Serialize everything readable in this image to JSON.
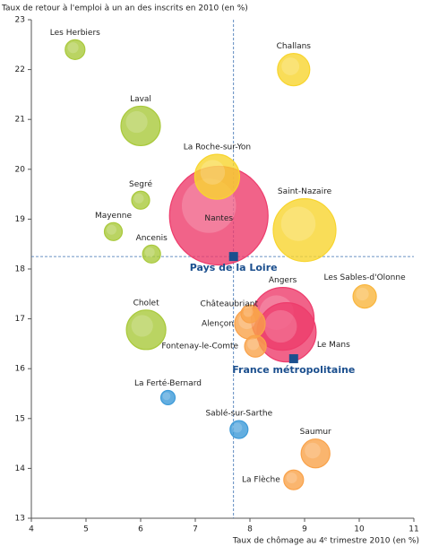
{
  "chart_data": {
    "type": "bubble",
    "y_label": "Taux de retour à l'emploi à un an des inscrits en 2010 (en %)",
    "x_label": "Taux de chômage au 4ᵉ trimestre 2010 (en %)",
    "xlim": [
      4,
      11
    ],
    "xticks": [
      4,
      5,
      6,
      7,
      8,
      9,
      10,
      11
    ],
    "ylim": [
      13,
      23
    ],
    "yticks": [
      13,
      14,
      15,
      16,
      17,
      18,
      19,
      20,
      21,
      22,
      23
    ],
    "points": [
      {
        "name": "Les Herbiers",
        "x": 4.8,
        "y": 22.4,
        "size": 4,
        "color": "#a9c93b"
      },
      {
        "name": "Challans",
        "x": 8.8,
        "y": 22.0,
        "size": 10.7,
        "color": "#f8d52e"
      },
      {
        "name": "Laval",
        "x": 6.0,
        "y": 20.87,
        "size": 16,
        "color": "#a9c93b"
      },
      {
        "name": "La Roche-sur-Yon",
        "x": 7.4,
        "y": 19.85,
        "size": 20.7,
        "color": "#f8d52e"
      },
      {
        "name": "Segré",
        "x": 6.0,
        "y": 19.38,
        "size": 3.3,
        "color": "#a9c93b"
      },
      {
        "name": "Saint-Nazaire",
        "x": 9.0,
        "y": 18.78,
        "size": 40.5,
        "color": "#f8d52e"
      },
      {
        "name": "Nantes",
        "x": 7.43,
        "y": 19.07,
        "size": 100,
        "color": "#ee3c6c"
      },
      {
        "name": "Mayenne",
        "x": 5.5,
        "y": 18.75,
        "size": 3.3,
        "color": "#a9c93b"
      },
      {
        "name": "Ancenis",
        "x": 6.2,
        "y": 18.3,
        "size": 3.3,
        "color": "#a9c93b"
      },
      {
        "name": "Les Sables-d'Olonne",
        "x": 10.1,
        "y": 17.45,
        "size": 5.6,
        "color": "#f9b53c"
      },
      {
        "name": "Angers",
        "x": 8.6,
        "y": 17.0,
        "size": 40.5,
        "color": "#ee3c6c"
      },
      {
        "name": "Le Mans",
        "x": 8.67,
        "y": 16.73,
        "size": 36,
        "color": "#ee3c6c"
      },
      {
        "name": "Châteaubriant",
        "x": 8.0,
        "y": 17.1,
        "size": 3.3,
        "color": "#f9a24a"
      },
      {
        "name": "Alençon",
        "x": 8.0,
        "y": 16.9,
        "size": 9.6,
        "color": "#f9a24a"
      },
      {
        "name": "Fontenay-le-Comte",
        "x": 8.1,
        "y": 16.45,
        "size": 4.8,
        "color": "#f9a24a"
      },
      {
        "name": "Cholet",
        "x": 6.1,
        "y": 16.78,
        "size": 16,
        "color": "#a9c93b"
      },
      {
        "name": "La Ferté-Bernard",
        "x": 6.5,
        "y": 15.42,
        "size": 2.1,
        "color": "#3c9ad8"
      },
      {
        "name": "Sablé-sur-Sarthe",
        "x": 7.8,
        "y": 14.78,
        "size": 3.3,
        "color": "#3c9ad8"
      },
      {
        "name": "Saumur",
        "x": 9.2,
        "y": 14.3,
        "size": 8.5,
        "color": "#f9a24a"
      },
      {
        "name": "La Flèche",
        "x": 8.8,
        "y": 13.77,
        "size": 4,
        "color": "#f9a24a"
      }
    ],
    "reference_points": [
      {
        "name": "Pays de la Loire",
        "x": 7.7,
        "y": 18.25,
        "color": "#1b4f8e"
      },
      {
        "name": "France métropolitaine",
        "x": 8.8,
        "y": 16.2,
        "color": "#1b4f8e"
      }
    ]
  }
}
